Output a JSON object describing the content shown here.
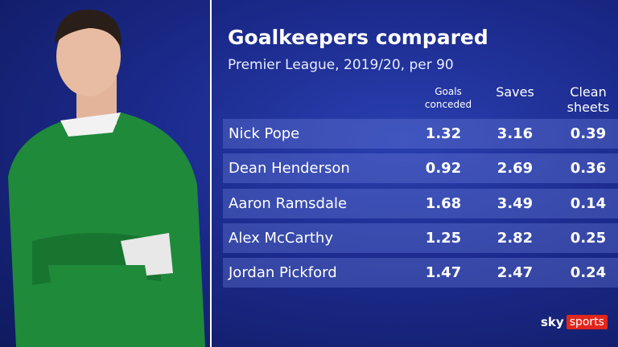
{
  "header": {
    "title": "Goalkeepers compared",
    "subtitle": "Premier League, 2019/20, per 90"
  },
  "table": {
    "columns": [
      "Goals conceded",
      "Saves",
      "Clean sheets"
    ],
    "rows": [
      [
        "Nick Pope",
        1.32,
        3.16,
        0.39
      ],
      [
        "Dean Henderson",
        0.92,
        2.69,
        0.36
      ],
      [
        "Aaron Ramsdale",
        1.68,
        3.49,
        0.14
      ],
      [
        "Alex McCarthy",
        1.25,
        2.82,
        0.25
      ],
      [
        "Jordan Pickford",
        1.47,
        2.47,
        0.24
      ]
    ]
  },
  "logo": {
    "brand": "sky",
    "product": "sports"
  }
}
